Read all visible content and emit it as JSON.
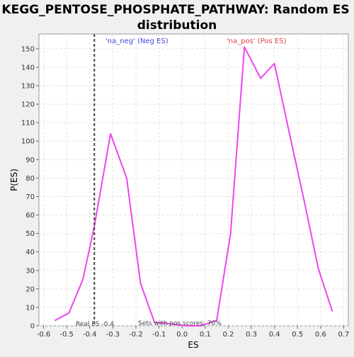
{
  "chart_data": {
    "type": "line",
    "title": "KEGG_PENTOSE_PHOSPHATE_PATHWAY: Random ES distribution",
    "title_lines": [
      "KEGG_PENTOSE_PHOSPHATE_PATHWAY: Random ES",
      "distribution"
    ],
    "xlabel": "ES",
    "ylabel": "P(ES)",
    "xlim": [
      -0.62,
      0.72
    ],
    "ylim": [
      0,
      158
    ],
    "xticks": [
      -0.6,
      -0.5,
      -0.4,
      -0.3,
      -0.2,
      -0.1,
      0.0,
      0.1,
      0.2,
      0.3,
      0.4,
      0.5,
      0.6,
      0.7
    ],
    "xtick_labels": [
      "-0.6",
      "-0.5",
      "-0.4",
      "-0.3",
      "-0.2",
      "-0.1",
      "0.0",
      "0.1",
      "0.2",
      "0.3",
      "0.4",
      "0.5",
      "0.6",
      "0.7"
    ],
    "yticks": [
      0,
      10,
      20,
      30,
      40,
      50,
      60,
      70,
      80,
      90,
      100,
      110,
      120,
      130,
      140,
      150
    ],
    "ytick_labels": [
      "0",
      "10",
      "20",
      "30",
      "40",
      "50",
      "60",
      "70",
      "80",
      "90",
      "100",
      "110",
      "120",
      "130",
      "140",
      "150"
    ],
    "grid": true,
    "series": [
      {
        "color": "#ee44ee",
        "x": [
          -0.55,
          -0.49,
          -0.43,
          -0.38,
          -0.31,
          -0.24,
          -0.18,
          -0.12,
          -0.05,
          0.02,
          0.08,
          0.15,
          0.21,
          0.27,
          0.34,
          0.4,
          0.46,
          0.53,
          0.59,
          0.65
        ],
        "y": [
          3,
          7,
          25,
          54,
          104,
          80,
          23,
          2,
          1,
          0,
          0,
          3,
          50,
          151,
          134,
          142,
          107,
          67,
          31,
          8
        ]
      }
    ],
    "real_es": -0.38,
    "annotations": {
      "neg_label": "'na_neg' (Neg ES)",
      "pos_label": "'na_pos' (Pos ES)",
      "real_es_label": "Real ES -0.4",
      "pos_scores_label": "Sets with pos scores: 70%"
    },
    "colors": {
      "line": "#ee44ee",
      "neg_label": "#4444dd",
      "pos_label": "#dd4444",
      "background": "#f0f0f0",
      "plot_background": "#ffffff",
      "grid": "#e2e2e2"
    }
  }
}
